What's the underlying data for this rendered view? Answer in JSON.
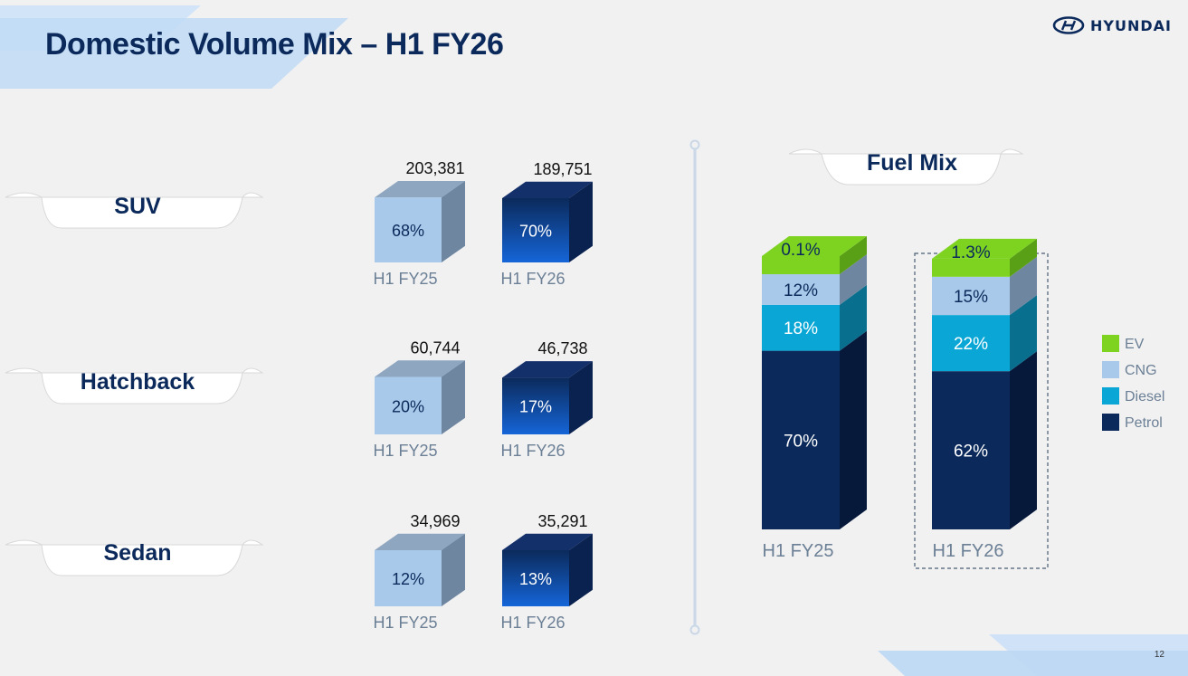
{
  "header": {
    "title": "Domestic Volume Mix – H1 FY26",
    "brand": "HYUNDAI"
  },
  "page_number": "12",
  "categories": [
    {
      "name": "SUV",
      "label_key": "suv"
    },
    {
      "name": "Hatchback",
      "label_key": "hatchback"
    },
    {
      "name": "Sedan",
      "label_key": "sedan"
    }
  ],
  "fuel_mix_heading": "Fuel Mix",
  "colors": {
    "title": "#0b2a5b",
    "fy25_cube_front": "#a9c9ea",
    "fy26_cube_front": "#0d3b8c",
    "ev": "#7ed321",
    "cng": "#a9c9ea",
    "diesel": "#0aa7d6",
    "petrol": "#0b2a5b"
  },
  "chart_data": [
    {
      "type": "bar",
      "title": "",
      "categories": [
        "SUV",
        "Hatchback",
        "Sedan"
      ],
      "series": [
        {
          "name": "H1 FY25",
          "values": [
            203381,
            60744,
            34969
          ],
          "labels": [
            "203,381",
            "60,744",
            "34,969"
          ],
          "share_labels": [
            "68%",
            "20%",
            "12%"
          ]
        },
        {
          "name": "H1 FY26",
          "values": [
            189751,
            46738,
            35291
          ],
          "labels": [
            "189,751",
            "46,738",
            "35,291"
          ],
          "share_labels": [
            "70%",
            "17%",
            "13%"
          ]
        }
      ]
    },
    {
      "type": "bar",
      "stacked": true,
      "title": "Fuel Mix",
      "categories": [
        "H1 FY25",
        "H1 FY26"
      ],
      "series": [
        {
          "name": "Petrol",
          "values": [
            70,
            62
          ],
          "labels": [
            "70%",
            "62%"
          ]
        },
        {
          "name": "Diesel",
          "values": [
            18,
            22
          ],
          "labels": [
            "18%",
            "22%"
          ]
        },
        {
          "name": "CNG",
          "values": [
            12,
            15
          ],
          "labels": [
            "12%",
            "15%"
          ]
        },
        {
          "name": "EV",
          "values": [
            0.1,
            1.3
          ],
          "labels": [
            "0.1%",
            "1.3%"
          ]
        }
      ],
      "legend": [
        "EV",
        "CNG",
        "Diesel",
        "Petrol"
      ],
      "legend_position": "right",
      "ylim": [
        0,
        100
      ]
    }
  ]
}
